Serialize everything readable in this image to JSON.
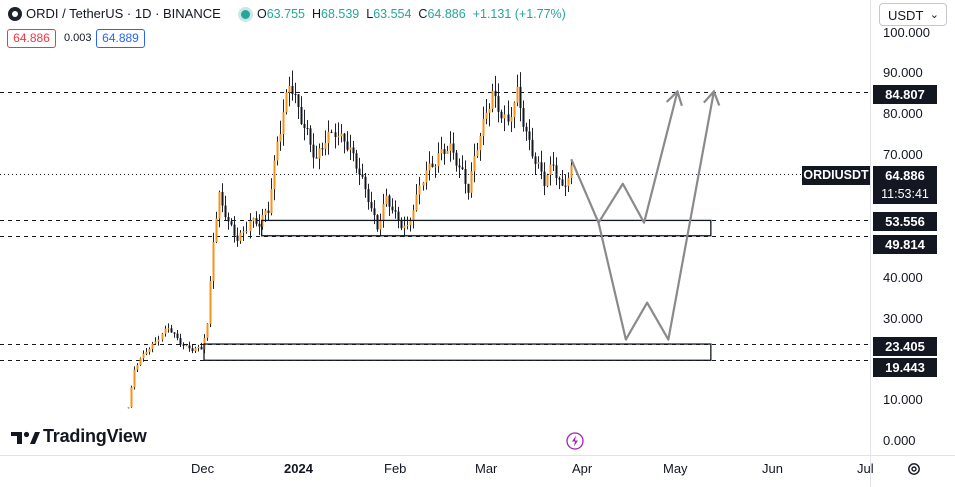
{
  "header": {
    "title": "ORDI / TetherUS · 1D · BINANCE",
    "open_label": "O",
    "open": "63.755",
    "high_label": "H",
    "high": "68.539",
    "low_label": "L",
    "low": "63.554",
    "close_label": "C",
    "close": "64.886",
    "change": "+1.131 (+1.77%)"
  },
  "trade": {
    "sell": "64.886",
    "spread": "0.003",
    "buy": "64.889"
  },
  "currency": {
    "value": "USDT"
  },
  "price_axis": {
    "ticks": [
      "100.000",
      "90.000",
      "80.000",
      "70.000",
      "40.000",
      "30.000",
      "10.000",
      "0.000"
    ]
  },
  "price_tags": {
    "resistance": "84.807",
    "last_price": "64.886",
    "countdown": "11:53:41",
    "zone1_top": "53.556",
    "zone1_bottom": "49.814",
    "zone2_top": "23.405",
    "zone2_bottom": "19.443",
    "symbol": "ORDIUSDT"
  },
  "time_axis": {
    "labels": [
      "Dec",
      "2024",
      "Feb",
      "Mar",
      "Apr",
      "May",
      "Jun",
      "Jul"
    ]
  },
  "branding": {
    "logo_text": "TradingView"
  },
  "colors": {
    "up": "#26a69a",
    "down": "#f23645",
    "candle": "#f7931a",
    "wick": "#131722",
    "projection": "#8a8a8a",
    "accent": "#2962ff",
    "bolt": "#9c27b0"
  },
  "chart_data": {
    "type": "candlestick",
    "symbol": "ORDIUSDT",
    "timeframe": "1D",
    "exchange": "BINANCE",
    "ylim": [
      0,
      100
    ],
    "x_range": [
      "2023-10-20",
      "2024-07-05"
    ],
    "last_close": 64.886,
    "horizontal_levels": [
      84.807,
      64.886,
      53.556,
      49.814,
      23.405,
      19.443
    ],
    "zones": [
      {
        "top": 53.556,
        "bottom": 49.814,
        "from": "2023-12-20",
        "to": "2024-05-16"
      },
      {
        "top": 23.405,
        "bottom": 19.443,
        "from": "2023-12-01",
        "to": "2024-05-16"
      }
    ],
    "projection_paths": [
      {
        "points": [
          [
            "2024-03-31",
            68.5
          ],
          [
            "2024-04-09",
            53.0
          ],
          [
            "2024-04-17",
            62.5
          ],
          [
            "2024-04-24",
            53.0
          ],
          [
            "2024-05-05",
            85.0
          ]
        ]
      },
      {
        "points": [
          [
            "2024-04-09",
            53.0
          ],
          [
            "2024-04-18",
            24.5
          ],
          [
            "2024-04-25",
            33.5
          ],
          [
            "2024-05-02",
            24.5
          ],
          [
            "2024-05-17",
            85.0
          ]
        ]
      }
    ],
    "price_series": [
      [
        "2023-11-06",
        8
      ],
      [
        "2023-11-08",
        17
      ],
      [
        "2023-11-12",
        22
      ],
      [
        "2023-11-16",
        25
      ],
      [
        "2023-11-19",
        27
      ],
      [
        "2023-11-23",
        24
      ],
      [
        "2023-11-27",
        22
      ],
      [
        "2023-11-30",
        22
      ],
      [
        "2023-12-02",
        28
      ],
      [
        "2023-12-04",
        50
      ],
      [
        "2023-12-06",
        60
      ],
      [
        "2023-12-09",
        52
      ],
      [
        "2023-12-12",
        49
      ],
      [
        "2023-12-16",
        54
      ],
      [
        "2023-12-19",
        52
      ],
      [
        "2023-12-22",
        56
      ],
      [
        "2023-12-25",
        74
      ],
      [
        "2023-12-27",
        80
      ],
      [
        "2023-12-29",
        86
      ],
      [
        "2024-01-01",
        80
      ],
      [
        "2024-01-04",
        76
      ],
      [
        "2024-01-07",
        68
      ],
      [
        "2024-01-10",
        72
      ],
      [
        "2024-01-13",
        76
      ],
      [
        "2024-01-16",
        74
      ],
      [
        "2024-01-20",
        66
      ],
      [
        "2024-01-24",
        60
      ],
      [
        "2024-01-27",
        52
      ],
      [
        "2024-01-30",
        58
      ],
      [
        "2024-02-02",
        55
      ],
      [
        "2024-02-06",
        52
      ],
      [
        "2024-02-09",
        58
      ],
      [
        "2024-02-12",
        66
      ],
      [
        "2024-02-16",
        70
      ],
      [
        "2024-02-20",
        70
      ],
      [
        "2024-02-24",
        66
      ],
      [
        "2024-02-26",
        62
      ],
      [
        "2024-02-28",
        68
      ],
      [
        "2024-03-02",
        76
      ],
      [
        "2024-03-05",
        86
      ],
      [
        "2024-03-08",
        80
      ],
      [
        "2024-03-10",
        76
      ],
      [
        "2024-03-13",
        84
      ],
      [
        "2024-03-16",
        76
      ],
      [
        "2024-03-19",
        68
      ],
      [
        "2024-03-22",
        62
      ],
      [
        "2024-03-25",
        68
      ],
      [
        "2024-03-28",
        62
      ],
      [
        "2024-03-31",
        64.886
      ]
    ]
  }
}
